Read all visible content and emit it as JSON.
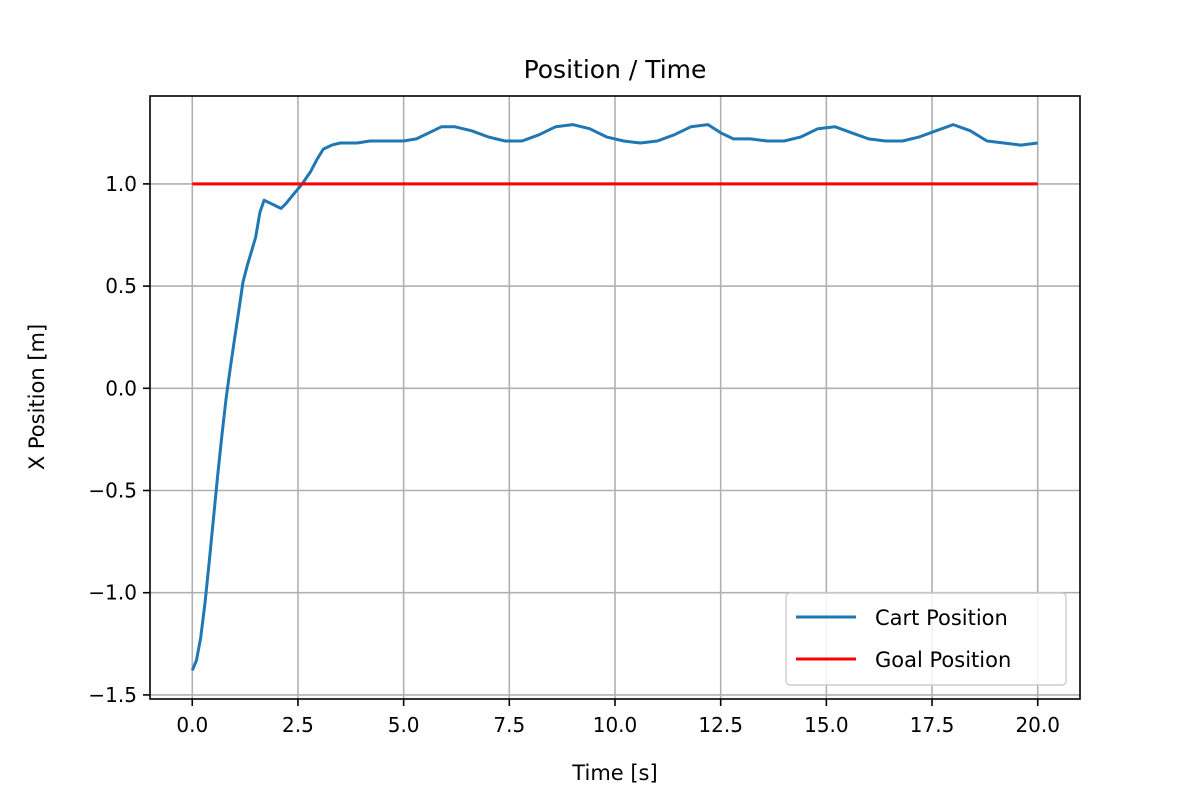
{
  "chart_data": {
    "type": "line",
    "title": "Position / Time",
    "xlabel": "Time [s]",
    "ylabel": "X Position [m]",
    "xlim": [
      -1.0,
      21.0
    ],
    "ylim": [
      -1.52,
      1.43
    ],
    "xticks": [
      0.0,
      2.5,
      5.0,
      7.5,
      10.0,
      12.5,
      15.0,
      17.5,
      20.0
    ],
    "xtick_labels": [
      "0.0",
      "2.5",
      "5.0",
      "7.5",
      "10.0",
      "12.5",
      "15.0",
      "17.5",
      "20.0"
    ],
    "yticks": [
      -1.5,
      -1.0,
      -0.5,
      0.0,
      0.5,
      1.0
    ],
    "ytick_labels": [
      "−1.5",
      "−1.0",
      "−0.5",
      "0.0",
      "0.5",
      "1.0"
    ],
    "grid": true,
    "legend_position": "lower-right",
    "series": [
      {
        "name": "Cart Position",
        "color": "#1f77b4",
        "x": [
          0.0,
          0.1,
          0.2,
          0.3,
          0.4,
          0.5,
          0.6,
          0.7,
          0.8,
          0.9,
          1.0,
          1.1,
          1.2,
          1.3,
          1.4,
          1.5,
          1.6,
          1.7,
          1.8,
          1.9,
          2.0,
          2.1,
          2.2,
          2.4,
          2.6,
          2.8,
          2.95,
          3.1,
          3.3,
          3.5,
          3.7,
          3.9,
          4.2,
          4.6,
          5.0,
          5.3,
          5.6,
          5.9,
          6.2,
          6.6,
          7.0,
          7.4,
          7.8,
          8.2,
          8.6,
          9.0,
          9.4,
          9.8,
          10.2,
          10.6,
          11.0,
          11.4,
          11.8,
          12.2,
          12.5,
          12.8,
          13.2,
          13.6,
          14.0,
          14.4,
          14.8,
          15.2,
          15.6,
          16.0,
          16.4,
          16.8,
          17.2,
          17.6,
          18.0,
          18.4,
          18.8,
          19.2,
          19.6,
          20.0
        ],
        "y": [
          -1.38,
          -1.33,
          -1.22,
          -1.05,
          -0.85,
          -0.64,
          -0.43,
          -0.23,
          -0.05,
          0.1,
          0.24,
          0.38,
          0.52,
          0.6,
          0.67,
          0.74,
          0.86,
          0.92,
          0.91,
          0.9,
          0.89,
          0.88,
          0.9,
          0.95,
          1.0,
          1.06,
          1.12,
          1.17,
          1.19,
          1.2,
          1.2,
          1.2,
          1.21,
          1.21,
          1.21,
          1.22,
          1.25,
          1.28,
          1.28,
          1.26,
          1.23,
          1.21,
          1.21,
          1.24,
          1.28,
          1.29,
          1.27,
          1.23,
          1.21,
          1.2,
          1.21,
          1.24,
          1.28,
          1.29,
          1.25,
          1.22,
          1.22,
          1.21,
          1.21,
          1.23,
          1.27,
          1.28,
          1.25,
          1.22,
          1.21,
          1.21,
          1.23,
          1.26,
          1.29,
          1.26,
          1.21,
          1.2,
          1.19,
          1.2
        ]
      },
      {
        "name": "Goal Position",
        "color": "#ff0000",
        "x": [
          0.0,
          20.0
        ],
        "y": [
          1.0,
          1.0
        ]
      }
    ]
  }
}
